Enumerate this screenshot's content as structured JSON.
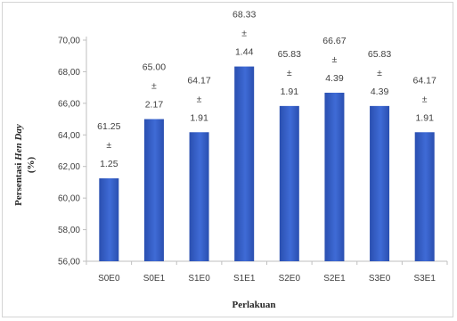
{
  "chart_data": {
    "type": "bar",
    "title": "",
    "xlabel": "Perlakuan",
    "ylabel_main": "Persentasi ",
    "ylabel_italic": "Hen Day",
    "ylabel_unit": "(%)",
    "categories": [
      "S0E0",
      "S0E1",
      "S1E0",
      "S1E1",
      "S2E0",
      "S2E1",
      "S3E0",
      "S3E1"
    ],
    "series": [
      {
        "values": [
          61.25,
          65.0,
          64.17,
          68.33,
          65.83,
          66.67,
          65.83,
          64.17
        ],
        "errors": [
          1.25,
          2.17,
          1.91,
          1.44,
          1.91,
          4.39,
          4.39,
          1.91
        ]
      }
    ],
    "value_labels": [
      "61.25",
      "65.00",
      "64.17",
      "68.33",
      "65.83",
      "66.67",
      "65.83",
      "64.17"
    ],
    "error_labels": [
      "1.25",
      "2.17",
      "1.91",
      "1.44",
      "1.91",
      "4.39",
      "4.39",
      "1.91"
    ],
    "plus_minus_symbol": "±",
    "yticks": [
      "56,00",
      "58,00",
      "60,00",
      "62,00",
      "64,00",
      "66,00",
      "68,00",
      "70,00"
    ],
    "ylim": [
      56,
      70
    ],
    "grid": false,
    "legend": "none",
    "bar_color": "#3F6BD6",
    "bar_color_dark": "#2A4FB0"
  }
}
